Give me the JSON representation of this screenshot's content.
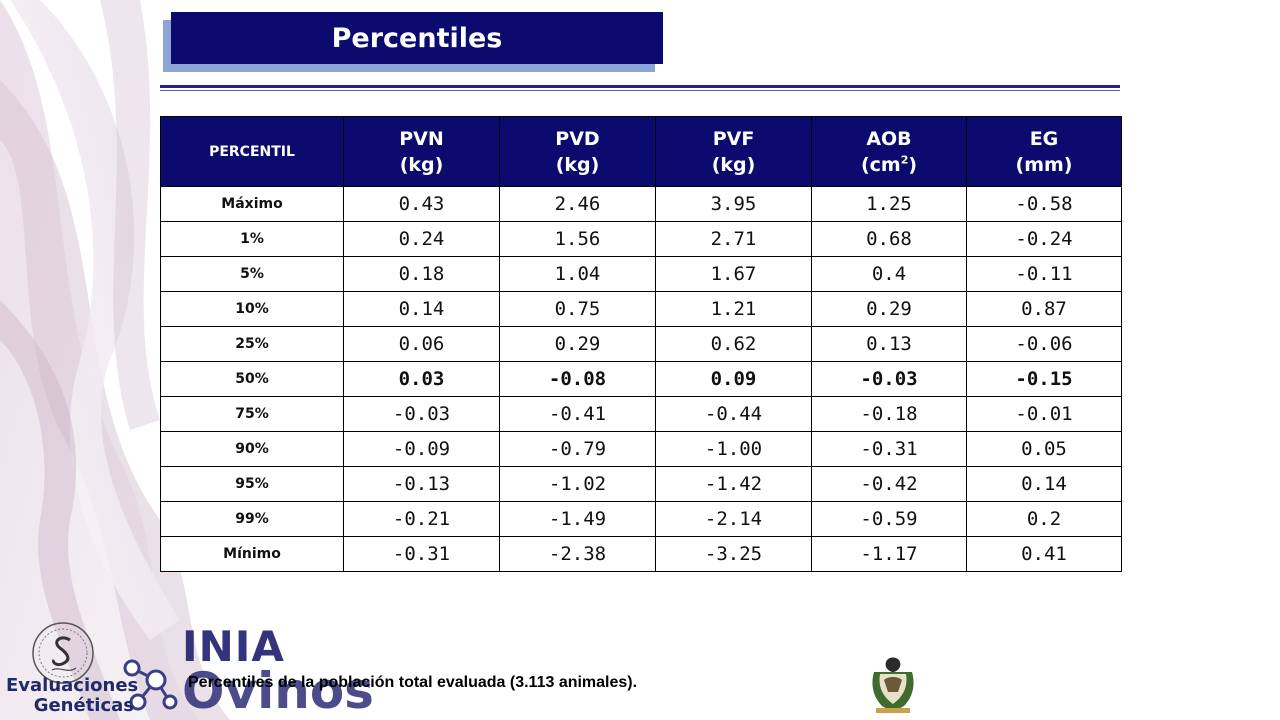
{
  "title": "Percentiles",
  "table": {
    "headers": [
      {
        "line1": "PERCENTIL",
        "line2": "",
        "sup": "",
        "close": ""
      },
      {
        "line1": "PVN",
        "line2": "(kg)",
        "sup": "",
        "close": ""
      },
      {
        "line1": "PVD",
        "line2": "(kg)",
        "sup": "",
        "close": ""
      },
      {
        "line1": "PVF",
        "line2": "(kg)",
        "sup": "",
        "close": ""
      },
      {
        "line1": "AOB",
        "line2": "(cm",
        "sup": "2",
        "close": ")"
      },
      {
        "line1": "EG",
        "line2": "(mm)",
        "sup": "",
        "close": ""
      }
    ],
    "rows": [
      {
        "label": "Máximo",
        "values": [
          "0.43",
          "2.46",
          "3.95",
          "1.25",
          "-0.58"
        ]
      },
      {
        "label": "1%",
        "values": [
          "0.24",
          "1.56",
          "2.71",
          "0.68",
          "-0.24"
        ]
      },
      {
        "label": "5%",
        "values": [
          "0.18",
          "1.04",
          "1.67",
          "0.4",
          "-0.11"
        ]
      },
      {
        "label": "10%",
        "values": [
          "0.14",
          "0.75",
          "1.21",
          "0.29",
          "0.87"
        ]
      },
      {
        "label": "25%",
        "values": [
          "0.06",
          "0.29",
          "0.62",
          "0.13",
          "-0.06"
        ]
      },
      {
        "label": "50%",
        "values": [
          "0.03",
          "-0.08",
          "0.09",
          "-0.03",
          "-0.15"
        ]
      },
      {
        "label": "75%",
        "values": [
          "-0.03",
          "-0.41",
          "-0.44",
          "-0.18",
          "-0.01"
        ]
      },
      {
        "label": "90%",
        "values": [
          "-0.09",
          "-0.79",
          "-1.00",
          "-0.31",
          "0.05"
        ]
      },
      {
        "label": "95%",
        "values": [
          "-0.13",
          "-1.02",
          "-1.42",
          "-0.42",
          "0.14"
        ]
      },
      {
        "label": "99%",
        "values": [
          "-0.21",
          "-1.49",
          "-2.14",
          "-0.59",
          "0.2"
        ]
      },
      {
        "label": "Mínimo",
        "values": [
          "-0.31",
          "-2.38",
          "-3.25",
          "-1.17",
          "0.41"
        ]
      }
    ]
  },
  "caption": "Percentiles de la población total evaluada (3.113 animales).",
  "logos": {
    "inia": "INIA",
    "ovinos": "Ovinos",
    "evaluaciones_line1": "Evaluaciones",
    "evaluaciones_line2": "Genéticas"
  },
  "colors": {
    "banner": "#0b0a6e",
    "header_bg": "#0b0a6e",
    "header_text": "#ffffff"
  },
  "icons": [
    "seal-logo-icon",
    "molecule-icon",
    "crest-emblem-icon"
  ]
}
